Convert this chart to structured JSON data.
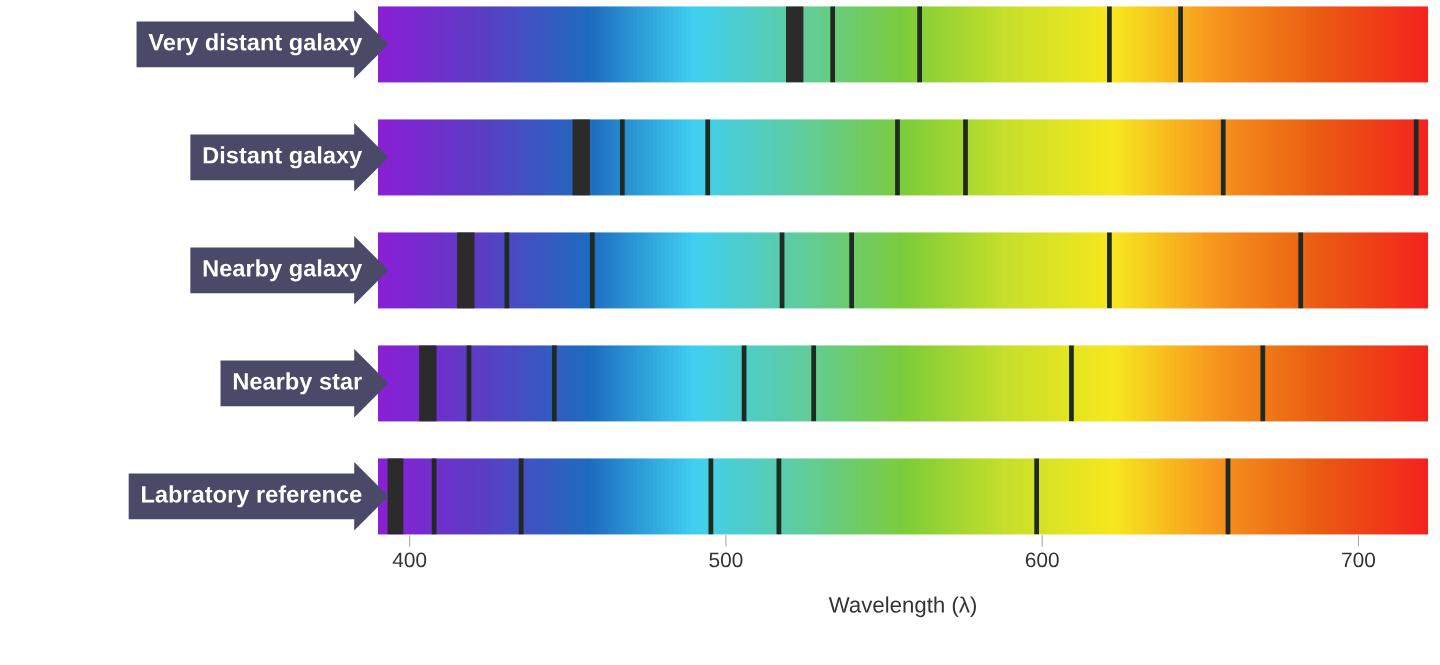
{
  "chart_data": {
    "type": "bar",
    "orientation": "horizontal",
    "xlabel": "Wavelength (λ)",
    "categories": [
      "Very distant galaxy",
      "Distant galaxy",
      "Nearby galaxy",
      "Nearby star",
      "Labratory reference"
    ],
    "xlim": [
      390,
      722
    ],
    "xticks": [
      400,
      500,
      600,
      700
    ],
    "grid": false,
    "legend": false,
    "series": [
      {
        "color": "#2b2b2b",
        "base": [
          519.0,
          451.5,
          415.0,
          403.0,
          393.0
        ],
        "values": [
          5.5,
          5.5,
          5.5,
          5.5,
          5.0
        ]
      },
      {
        "color": "#1f2a22",
        "base": [
          533.0,
          466.5,
          430.0,
          418.0,
          407.0
        ],
        "values": [
          1.5,
          1.5,
          1.5,
          1.5,
          1.5
        ]
      },
      {
        "color": "#1f2a22",
        "base": [
          560.5,
          493.5,
          457.0,
          445.0,
          434.5
        ],
        "values": [
          1.5,
          1.5,
          1.5,
          1.5,
          1.5
        ]
      },
      {
        "color": "#1f2a22",
        "base": [
          620.5,
          553.5,
          517.0,
          505.0,
          494.5
        ],
        "values": [
          1.5,
          1.5,
          1.5,
          1.5,
          1.5
        ]
      },
      {
        "color": "#1f2a22",
        "base": [
          643.0,
          575.0,
          539.0,
          527.0,
          516.0
        ],
        "values": [
          1.5,
          1.5,
          1.5,
          1.5,
          1.5
        ]
      },
      {
        "color": "#1f2a22",
        "base": [
          null,
          656.5,
          620.5,
          608.5,
          597.5
        ],
        "values": [
          null,
          1.5,
          1.5,
          1.5,
          1.5
        ]
      },
      {
        "color": "#1f2a22",
        "base": [
          null,
          717.5,
          681.0,
          669.0,
          658.0
        ],
        "values": [
          null,
          1.5,
          1.5,
          1.5,
          1.5
        ]
      }
    ]
  }
}
